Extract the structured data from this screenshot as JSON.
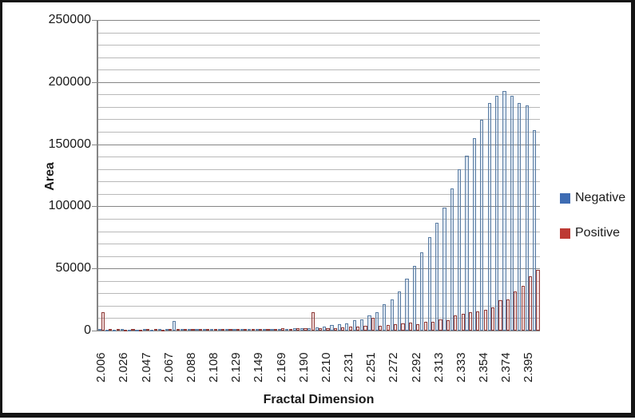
{
  "chart_data": {
    "type": "bar",
    "title": "",
    "xlabel": "Fractal Dimension",
    "ylabel": "Area",
    "ylim": [
      0,
      250000
    ],
    "y_minor_step": 10000,
    "y_major_ticks": [
      0,
      50000,
      100000,
      150000,
      200000,
      250000
    ],
    "y_tick_labels": [
      "0",
      "50000",
      "100000",
      "150000",
      "200000",
      "250000"
    ],
    "x_tick_labels": [
      "2.006",
      "2.026",
      "2.047",
      "2.067",
      "2.088",
      "2.108",
      "2.129",
      "2.149",
      "2.169",
      "2.190",
      "2.210",
      "2.231",
      "2.251",
      "2.272",
      "2.292",
      "2.313",
      "2.333",
      "2.354",
      "2.374",
      "2.395"
    ],
    "label_every": 3,
    "grid": "on",
    "legend": {
      "position": "right",
      "entries": [
        {
          "name": "Negative",
          "color": "#3e6cb3"
        },
        {
          "name": "Positive",
          "color": "#bd3a34"
        }
      ]
    },
    "categories": [
      "2.006",
      "",
      "",
      "2.026",
      "",
      "",
      "2.047",
      "",
      "",
      "2.067",
      "",
      "",
      "2.088",
      "",
      "",
      "2.108",
      "",
      "",
      "2.129",
      "",
      "",
      "2.149",
      "",
      "",
      "2.169",
      "",
      "",
      "2.190",
      "",
      "",
      "2.210",
      "",
      "",
      "2.231",
      "",
      "",
      "2.251",
      "",
      "",
      "2.272",
      "",
      "",
      "2.292",
      "",
      "",
      "2.313",
      "",
      "",
      "2.333",
      "",
      "",
      "2.354",
      "",
      "",
      "2.374",
      "",
      "",
      "2.395",
      ""
    ],
    "series": [
      {
        "name": "Negative",
        "fill": "#dce6f1",
        "border": "#5b7da3",
        "values": [
          1000,
          900,
          800,
          1000,
          800,
          900,
          1000,
          900,
          1100,
          1000,
          7500,
          1100,
          1000,
          1200,
          1000,
          1100,
          1200,
          1100,
          1300,
          1200,
          1400,
          1300,
          1500,
          1400,
          1600,
          1500,
          1700,
          1800,
          2000,
          2800,
          3400,
          4200,
          5200,
          6000,
          8200,
          9200,
          12500,
          14600,
          21100,
          25300,
          31800,
          41500,
          52200,
          63000,
          75500,
          86600,
          99100,
          114100,
          129600,
          141000,
          155000,
          169400,
          183400,
          189200,
          193000,
          189200,
          183400,
          181000,
          161000
        ]
      },
      {
        "name": "Positive",
        "fill": "#f2dcdb",
        "border": "#8e3b38",
        "values": [
          15000,
          1500,
          1000,
          900,
          1100,
          900,
          1000,
          1200,
          900,
          1100,
          1000,
          1300,
          1100,
          1000,
          1200,
          1100,
          1300,
          1200,
          1400,
          1300,
          1500,
          1400,
          1600,
          1500,
          1700,
          1600,
          1800,
          1700,
          14500,
          1800,
          2000,
          2200,
          2500,
          3400,
          3000,
          4000,
          10000,
          4000,
          4500,
          5000,
          6000,
          6600,
          5000,
          7100,
          7100,
          9200,
          8200,
          12500,
          13500,
          14600,
          15700,
          16800,
          18900,
          24300,
          25300,
          31800,
          36100,
          43700,
          49000
        ]
      }
    ]
  }
}
